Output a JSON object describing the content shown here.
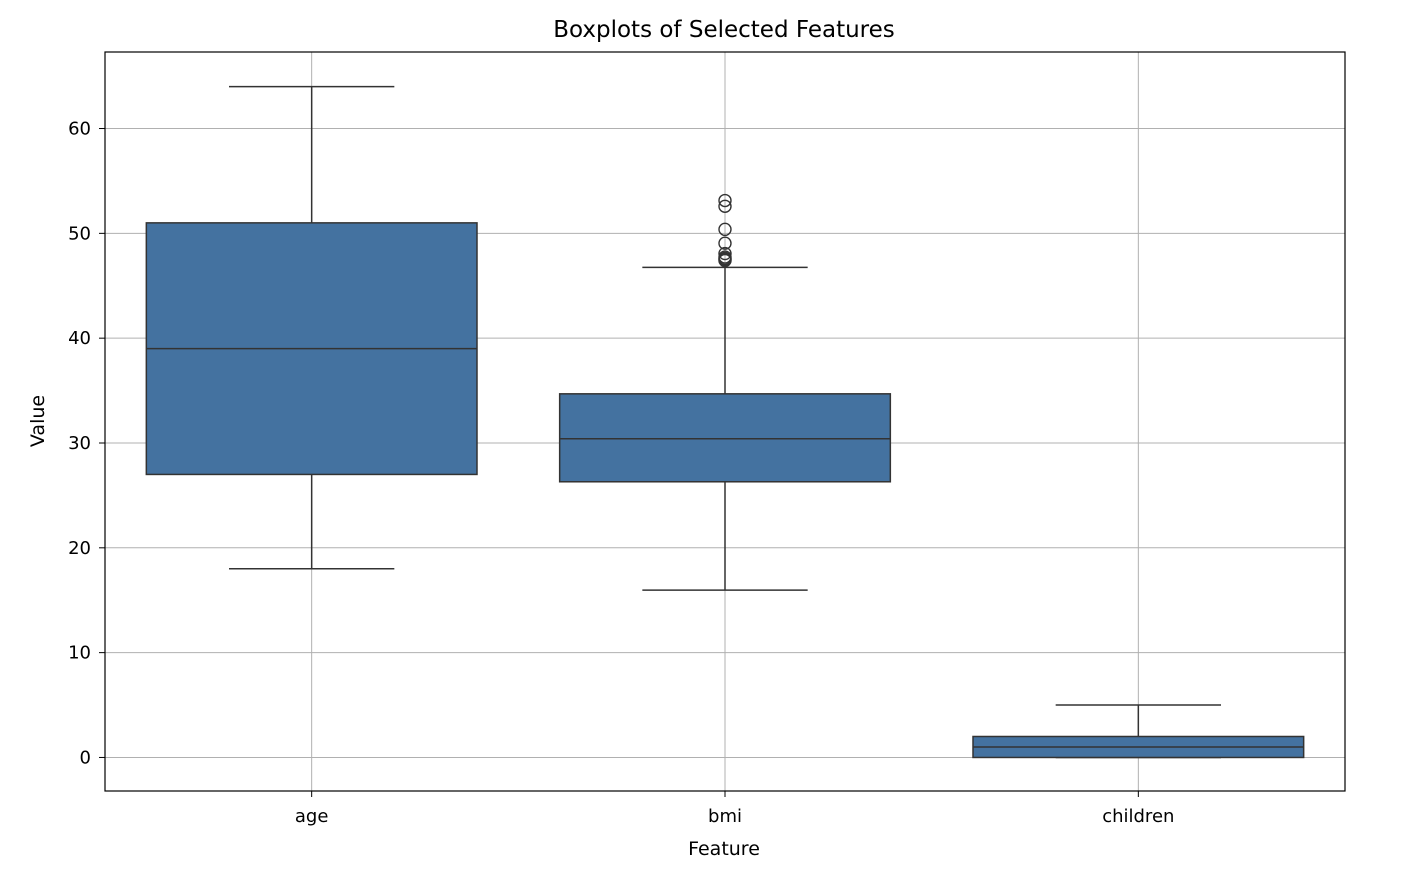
{
  "chart_data": {
    "type": "boxplot",
    "title": "Boxplots of Selected Features",
    "xlabel": "Feature",
    "ylabel": "Value",
    "ylim": [
      -3.2,
      67.3
    ],
    "yticks": [
      0,
      10,
      20,
      30,
      40,
      50,
      60
    ],
    "grid": true,
    "box_color": "#4472a0",
    "line_color": "#333333",
    "categories": [
      "age",
      "bmi",
      "children"
    ],
    "boxes": [
      {
        "name": "age",
        "whisker_low": 18,
        "q1": 27,
        "median": 39,
        "q3": 51,
        "whisker_high": 64,
        "outliers": []
      },
      {
        "name": "bmi",
        "whisker_low": 15.96,
        "q1": 26.3,
        "median": 30.4,
        "q3": 34.69,
        "whisker_high": 46.75,
        "outliers": [
          47.41,
          47.52,
          47.6,
          47.74,
          48.07,
          49.06,
          50.38,
          52.58,
          53.13
        ]
      },
      {
        "name": "children",
        "whisker_low": 0,
        "q1": 0,
        "median": 1,
        "q3": 2,
        "whisker_high": 5,
        "outliers": []
      }
    ]
  }
}
